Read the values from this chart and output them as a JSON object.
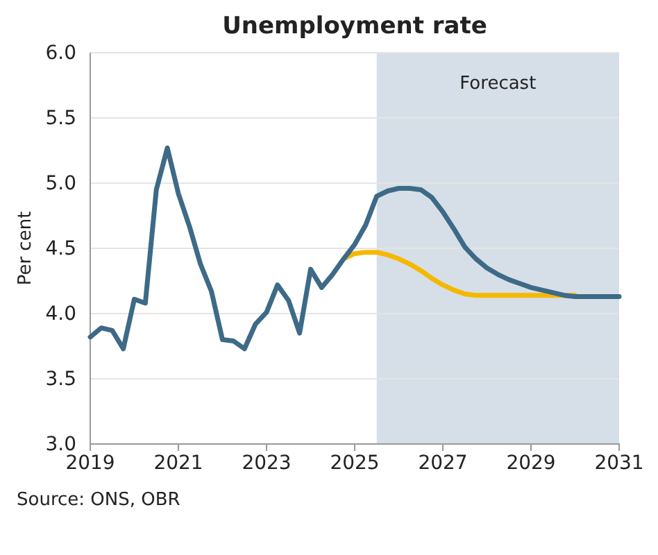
{
  "chart_data": {
    "type": "line",
    "title": "Unemployment rate",
    "ylabel": "Per cent",
    "xlim": [
      2019,
      2031
    ],
    "xticks": [
      2019,
      2021,
      2023,
      2025,
      2027,
      2029,
      2031
    ],
    "ylim": [
      3.0,
      6.0
    ],
    "yticks": [
      {
        "value": 3,
        "label": "3.0"
      },
      {
        "value": 3.5,
        "label": "3.5"
      },
      {
        "value": 4,
        "label": "4.0"
      },
      {
        "value": 4.5,
        "label": "4.5"
      },
      {
        "value": 5,
        "label": "5.0"
      },
      {
        "value": 5.5,
        "label": "5.5"
      },
      {
        "value": 6,
        "label": "6.0"
      }
    ],
    "grid": "y",
    "line_style": "solid",
    "marker": "none",
    "bands": [
      {
        "axis": "x",
        "from": 2025.5,
        "to": 2031,
        "label": "Forecast",
        "color": "#d6dfe7"
      }
    ],
    "series": [
      {
        "color": "#f5b800",
        "x": [
          2024.75,
          2025,
          2025.25,
          2025.5,
          2025.75,
          2026,
          2026.25,
          2026.5,
          2026.75,
          2027,
          2027.25,
          2027.5,
          2027.75,
          2028,
          2028.5,
          2029,
          2029.5,
          2030
        ],
        "values": [
          4.42,
          4.46,
          4.47,
          4.47,
          4.45,
          4.42,
          4.38,
          4.33,
          4.27,
          4.22,
          4.18,
          4.15,
          4.14,
          4.14,
          4.14,
          4.14,
          4.14,
          4.14
        ]
      },
      {
        "color": "#3d6a87",
        "x": [
          2019,
          2019.25,
          2019.5,
          2019.75,
          2020,
          2020.25,
          2020.5,
          2020.75,
          2021,
          2021.25,
          2021.5,
          2021.75,
          2022,
          2022.25,
          2022.5,
          2022.75,
          2023,
          2023.25,
          2023.5,
          2023.75,
          2024,
          2024.25,
          2024.5,
          2024.75,
          2025,
          2025.25,
          2025.5,
          2025.75,
          2026,
          2026.25,
          2026.5,
          2026.75,
          2027,
          2027.25,
          2027.5,
          2027.75,
          2028,
          2028.25,
          2028.5,
          2028.75,
          2029,
          2029.25,
          2029.5,
          2029.75,
          2030,
          2030.5,
          2031
        ],
        "values": [
          3.82,
          3.89,
          3.87,
          3.73,
          4.11,
          4.08,
          4.95,
          5.27,
          4.92,
          4.67,
          4.38,
          4.17,
          3.8,
          3.79,
          3.73,
          3.92,
          4.01,
          4.22,
          4.1,
          3.85,
          4.34,
          4.2,
          4.3,
          4.42,
          4.53,
          4.68,
          4.9,
          4.94,
          4.96,
          4.96,
          4.95,
          4.89,
          4.78,
          4.65,
          4.51,
          4.42,
          4.35,
          4.3,
          4.26,
          4.23,
          4.2,
          4.18,
          4.16,
          4.14,
          4.13,
          4.13,
          4.13
        ]
      }
    ],
    "annotations": [
      "Source: ONS, OBR"
    ]
  }
}
